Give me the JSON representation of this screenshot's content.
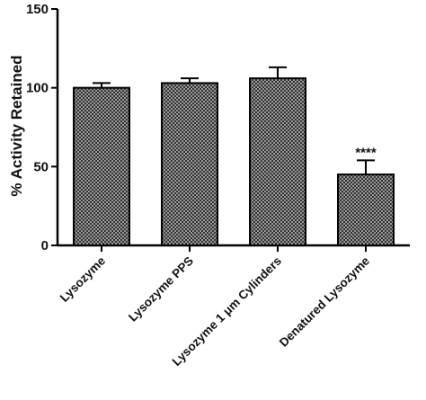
{
  "chart_data": {
    "type": "bar",
    "title": "",
    "xlabel": "",
    "ylabel": "% Activity Retained",
    "ylim": [
      0,
      150
    ],
    "yticks": [
      0,
      50,
      100,
      150
    ],
    "categories": [
      "Lysozyme",
      "Lysozyme PPS",
      "Lysozyme 1 μm Cylinders",
      "Denatured Lysozyme"
    ],
    "values": [
      100,
      103,
      106,
      45
    ],
    "errors": [
      3,
      3,
      7,
      9
    ],
    "annotations": [
      "",
      "",
      "",
      "****"
    ],
    "grid": false,
    "legend": "none",
    "bar_color": "#555555",
    "bar_pattern": "crosshatch"
  }
}
